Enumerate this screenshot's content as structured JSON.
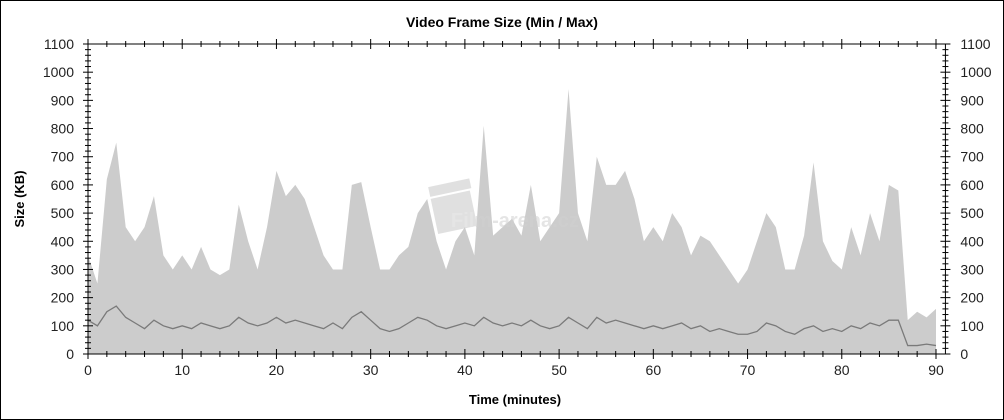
{
  "chart_data": {
    "type": "area",
    "title": "Video Frame Size (Min / Max)",
    "xlabel": "Time (minutes)",
    "ylabel": "Size (KB)",
    "xlim": [
      0,
      91
    ],
    "ylim": [
      0,
      1100
    ],
    "x_ticks": [
      0,
      10,
      20,
      30,
      40,
      50,
      60,
      70,
      80,
      90
    ],
    "y_ticks": [
      0,
      100,
      200,
      300,
      400,
      500,
      600,
      700,
      800,
      900,
      1000,
      1100
    ],
    "grid": false,
    "secondary_y_axis": true,
    "x": [
      0,
      1,
      2,
      3,
      4,
      5,
      6,
      7,
      8,
      9,
      10,
      11,
      12,
      13,
      14,
      15,
      16,
      17,
      18,
      19,
      20,
      21,
      22,
      23,
      24,
      25,
      26,
      27,
      28,
      29,
      30,
      31,
      32,
      33,
      34,
      35,
      36,
      37,
      38,
      39,
      40,
      41,
      42,
      43,
      44,
      45,
      46,
      47,
      48,
      49,
      50,
      51,
      52,
      53,
      54,
      55,
      56,
      57,
      58,
      59,
      60,
      61,
      62,
      63,
      64,
      65,
      66,
      67,
      68,
      69,
      70,
      71,
      72,
      73,
      74,
      75,
      76,
      77,
      78,
      79,
      80,
      81,
      82,
      83,
      84,
      85,
      86,
      87,
      88,
      89,
      90
    ],
    "series": [
      {
        "color": "#cccccc",
        "values": [
          350,
          250,
          620,
          750,
          450,
          400,
          450,
          560,
          350,
          300,
          350,
          300,
          380,
          300,
          280,
          300,
          530,
          400,
          300,
          450,
          650,
          560,
          600,
          550,
          450,
          350,
          300,
          300,
          600,
          610,
          450,
          300,
          300,
          350,
          380,
          500,
          550,
          400,
          300,
          400,
          450,
          350,
          810,
          420,
          450,
          480,
          420,
          600,
          400,
          450,
          500,
          940,
          500,
          400,
          700,
          600,
          600,
          650,
          550,
          400,
          450,
          400,
          500,
          450,
          350,
          420,
          400,
          350,
          300,
          250,
          300,
          400,
          500,
          450,
          300,
          300,
          420,
          680,
          400,
          330,
          300,
          450,
          350,
          500,
          400,
          600,
          580,
          120,
          150,
          130,
          160
        ]
      },
      {
        "color": "#7a7a7a",
        "values": [
          120,
          100,
          150,
          170,
          130,
          110,
          90,
          120,
          100,
          90,
          100,
          90,
          110,
          100,
          90,
          100,
          130,
          110,
          100,
          110,
          130,
          110,
          120,
          110,
          100,
          90,
          110,
          90,
          130,
          150,
          120,
          90,
          80,
          90,
          110,
          130,
          120,
          100,
          90,
          100,
          110,
          100,
          130,
          110,
          100,
          110,
          100,
          120,
          100,
          90,
          100,
          130,
          110,
          90,
          130,
          110,
          120,
          110,
          100,
          90,
          100,
          90,
          100,
          110,
          90,
          100,
          80,
          90,
          80,
          70,
          70,
          80,
          110,
          100,
          80,
          70,
          90,
          100,
          80,
          90,
          80,
          100,
          90,
          110,
          100,
          120,
          120,
          30,
          30,
          35,
          30
        ]
      }
    ]
  },
  "watermark": "Film-arena.cz"
}
